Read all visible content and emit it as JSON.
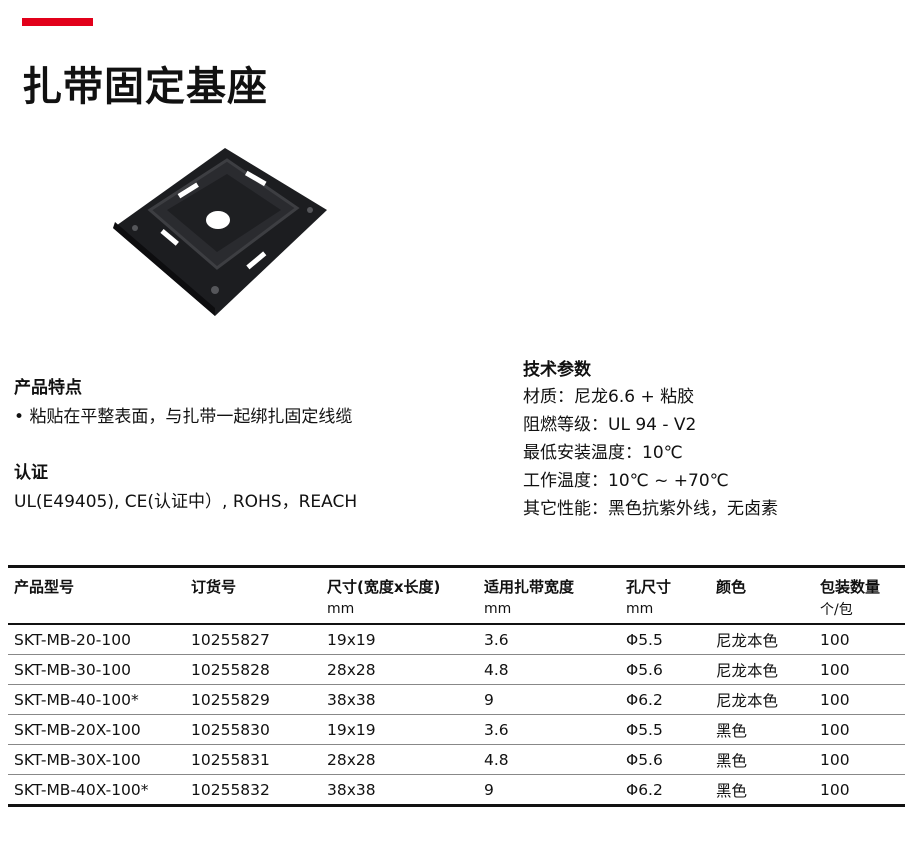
{
  "title": "扎带固定基座",
  "brand_color": "#e2001a",
  "features": {
    "heading": "产品特点",
    "items": [
      "粘贴在平整表面，与扎带一起绑扎固定线缆"
    ]
  },
  "certification": {
    "heading": "认证",
    "text": "UL(E49405), CE(认证中）, ROHS，REACH"
  },
  "specs": {
    "heading": "技术参数",
    "lines": [
      "材质：尼龙6.6 + 粘胶",
      "阻燃等级：UL 94 - V2",
      "最低安装温度：10℃",
      "工作温度：10℃ ~ +70℃",
      "其它性能：黑色抗紫外线，无卤素"
    ]
  },
  "table": {
    "headers": [
      "产品型号",
      "订货号",
      "尺寸(宽度x长度)",
      "适用扎带宽度",
      "孔尺寸",
      "颜色",
      "包装数量"
    ],
    "units": [
      "",
      "",
      "mm",
      "mm",
      "mm",
      "",
      "个/包"
    ],
    "rows": [
      [
        "SKT-MB-20-100",
        "10255827",
        "19x19",
        "3.6",
        "Φ5.5",
        "尼龙本色",
        "100"
      ],
      [
        "SKT-MB-30-100",
        "10255828",
        "28x28",
        "4.8",
        "Φ5.6",
        "尼龙本色",
        "100"
      ],
      [
        "SKT-MB-40-100*",
        "10255829",
        "38x38",
        "9",
        "Φ6.2",
        "尼龙本色",
        "100"
      ],
      [
        "SKT-MB-20X-100",
        "10255830",
        "19x19",
        "3.6",
        "Φ5.5",
        "黑色",
        "100"
      ],
      [
        "SKT-MB-30X-100",
        "10255831",
        "28x28",
        "4.8",
        "Φ5.6",
        "黑色",
        "100"
      ],
      [
        "SKT-MB-40X-100*",
        "10255832",
        "38x38",
        "9",
        "Φ6.2",
        "黑色",
        "100"
      ]
    ]
  }
}
